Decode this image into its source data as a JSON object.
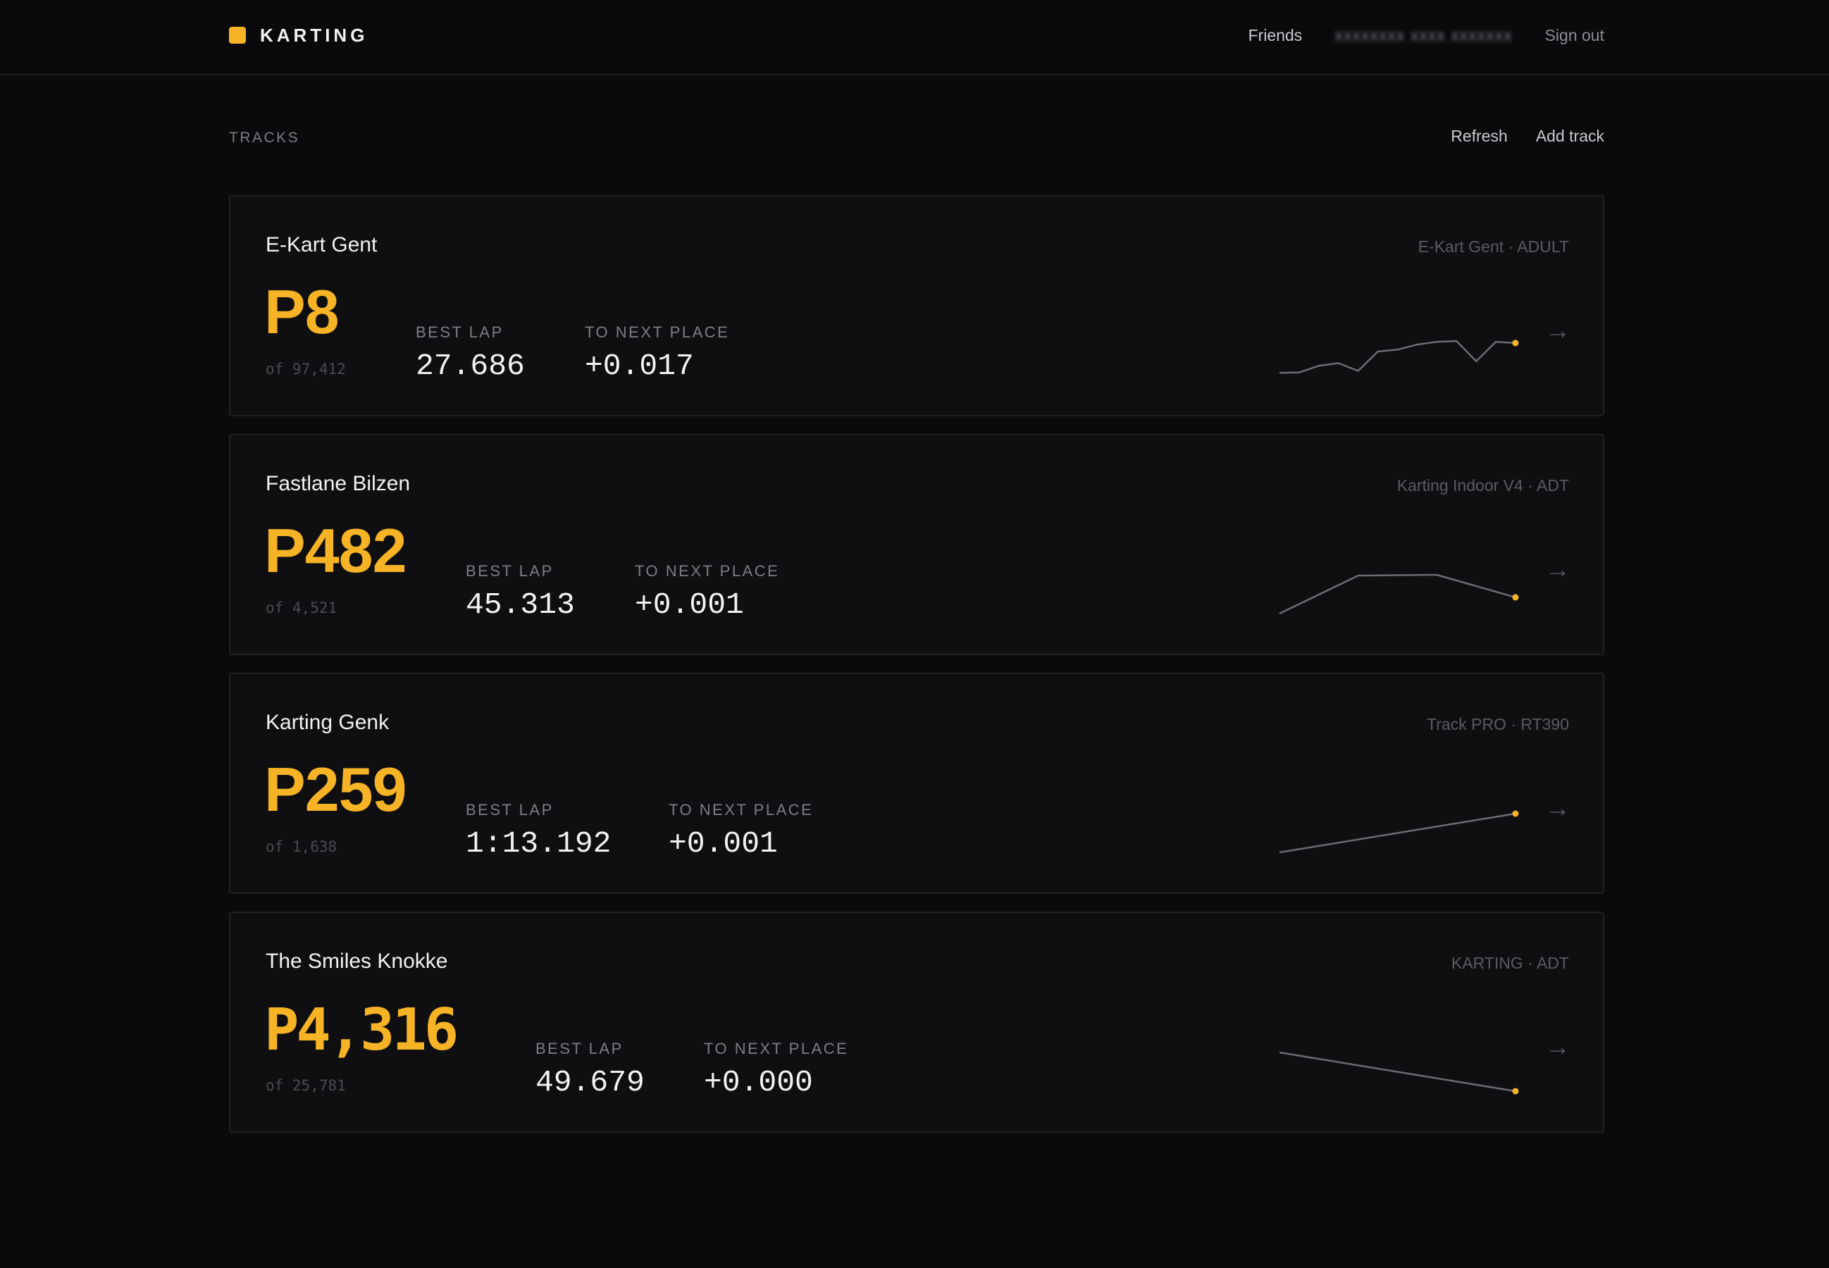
{
  "header": {
    "brand": "KARTING",
    "nav": {
      "friends": "Friends",
      "username": "xxxxxxxx xxxx xxxxxxx",
      "sign_out": "Sign out"
    }
  },
  "section": {
    "title": "TRACKS",
    "refresh_label": "Refresh",
    "add_label": "Add track"
  },
  "labels": {
    "best_lap": "BEST LAP",
    "to_next": "TO NEXT PLACE"
  },
  "colors": {
    "accent": "#f5b325",
    "background": "#0a0a0c",
    "card": "#0f0f12",
    "sparkline": "#6c6c74"
  },
  "arrow_icon": "arrow-right-icon",
  "tracks": [
    {
      "name": "E-Kart Gent",
      "kart": "E-Kart Gent · ADULT",
      "position": "P8",
      "of_total": "of 97,412",
      "best_lap": "27.686",
      "to_next": "+0.017",
      "trend": [
        0.05,
        0.06,
        0.23,
        0.3,
        0.1,
        0.6,
        0.65,
        0.78,
        0.85,
        0.87,
        0.35,
        0.85,
        0.82
      ]
    },
    {
      "name": "Fastlane Bilzen",
      "kart": "Karting Indoor V4 · ADT",
      "position": "P482",
      "of_total": "of 4,521",
      "best_lap": "45.313",
      "to_next": "+0.001",
      "trend": [
        0.0,
        0.98,
        1.0,
        0.42
      ]
    },
    {
      "name": "Karting Genk",
      "kart": "Track PRO · RT390",
      "position": "P259",
      "of_total": "of 1,638",
      "best_lap": "1:13.192",
      "to_next": "+0.001",
      "trend": [
        0.0,
        1.0
      ]
    },
    {
      "name": "The Smiles Knokke",
      "kart": "KARTING · ADT",
      "position": "P4,316",
      "of_total": "of 25,781",
      "best_lap": "49.679",
      "to_next": "+0.000",
      "trend": [
        1.0,
        0.0
      ]
    }
  ]
}
